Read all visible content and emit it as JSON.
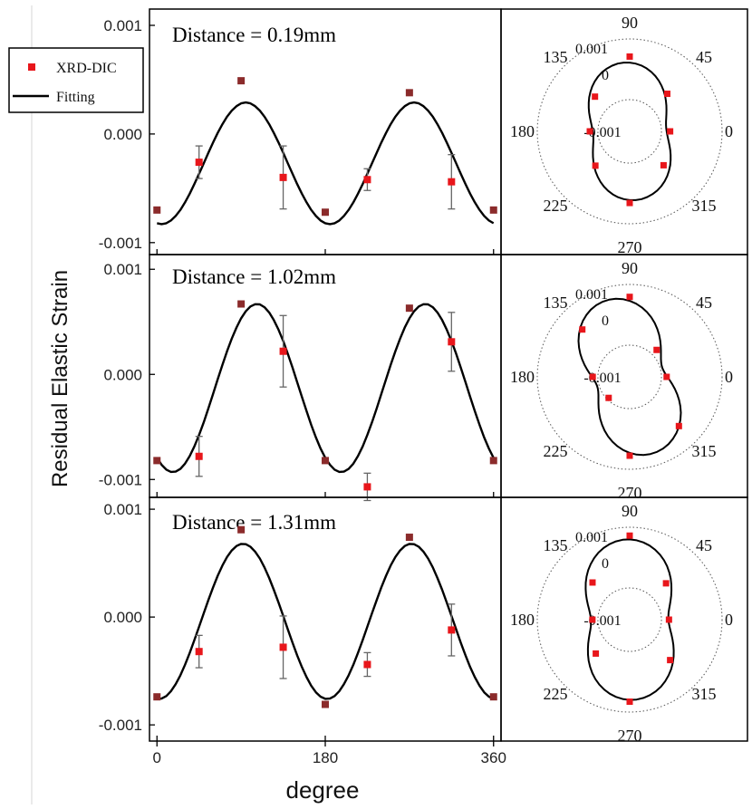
{
  "figure": {
    "ylabel": "Residual Elastic Strain",
    "xlabel": "degree",
    "legend": {
      "marker_label": "XRD-DIC",
      "line_label": "Fitting"
    },
    "colors": {
      "marker": "#e8161b",
      "marker_dark": "#8b2b2b",
      "fit": "#000000",
      "frame": "#000000"
    }
  },
  "chart_data": [
    {
      "type": "scatter",
      "annotation": "Distance = 0.19mm",
      "x_ticks": [
        "0",
        "180",
        "360"
      ],
      "y_ticks": [
        "0.001",
        "0.000",
        "-0.001"
      ],
      "xlim": [
        -8,
        368
      ],
      "ylim": [
        -0.00111,
        0.00115
      ],
      "series": [
        {
          "kind": "markers",
          "x": [
            0,
            45,
            90,
            135,
            180,
            225,
            270,
            315,
            360
          ],
          "y": [
            -0.0007,
            -0.00026,
            0.00049,
            -0.0004,
            -0.00072,
            -0.00042,
            0.00038,
            -0.00044,
            -0.0007
          ],
          "err": [
            0,
            0.00015,
            0,
            0.00029,
            0,
            0.0001,
            0,
            0.00025,
            0
          ]
        },
        {
          "kind": "fit",
          "mean": -0.00027,
          "amp": 0.00056,
          "peak_deg": 95
        }
      ]
    },
    {
      "type": "scatter",
      "annotation": "Distance = 1.02mm",
      "x_ticks": [
        "0",
        "180",
        "360"
      ],
      "y_ticks": [
        "0.001",
        "0.000",
        "-0.001"
      ],
      "xlim": [
        -8,
        368
      ],
      "ylim": [
        -0.00117,
        0.00114
      ],
      "series": [
        {
          "kind": "markers",
          "x": [
            0,
            45,
            90,
            135,
            180,
            225,
            270,
            315,
            360
          ],
          "y": [
            -0.00082,
            -0.00078,
            0.00067,
            0.00022,
            -0.00082,
            -0.00107,
            0.00063,
            0.00031,
            -0.00082
          ],
          "err": [
            0,
            0.00019,
            0,
            0.00034,
            0,
            0.00013,
            0,
            0.00028,
            0
          ]
        },
        {
          "kind": "fit",
          "mean": -0.00013,
          "amp": 0.0008,
          "peak_deg": 107
        }
      ]
    },
    {
      "type": "scatter",
      "annotation": "Distance = 1.31mm",
      "x_ticks": [
        "0",
        "180",
        "360"
      ],
      "y_ticks": [
        "0.001",
        "0.000",
        "-0.001"
      ],
      "xlim": [
        -8,
        368
      ],
      "ylim": [
        -0.00115,
        0.00111
      ],
      "series": [
        {
          "kind": "markers",
          "x": [
            0,
            45,
            90,
            135,
            180,
            225,
            270,
            315,
            360
          ],
          "y": [
            -0.00074,
            -0.00032,
            0.00081,
            -0.00028,
            -0.00081,
            -0.00044,
            0.00074,
            -0.00012,
            -0.00074
          ],
          "err": [
            0,
            0.00015,
            0,
            0.00029,
            0,
            0.00011,
            0,
            0.00024,
            0
          ]
        },
        {
          "kind": "fit",
          "mean": -4e-05,
          "amp": 0.00072,
          "peak_deg": 92
        }
      ]
    },
    {
      "type": "polar",
      "angle_ticks": [
        "90",
        "45",
        "0",
        "315",
        "270",
        "225",
        "180",
        "135"
      ],
      "radial_ticks": [
        "0.001",
        "0",
        "-0.001"
      ],
      "rlim": [
        -0.0021,
        0.0011
      ],
      "points": {
        "theta": [
          0,
          45,
          90,
          135,
          180,
          225,
          270,
          315
        ],
        "r": [
          -0.0007,
          -0.00026,
          0.00049,
          -0.0004,
          -0.00072,
          -0.00042,
          0.00038,
          -0.00044
        ]
      },
      "fit": {
        "mean": -0.00027,
        "amp": 0.00056,
        "peak_deg": 95
      }
    },
    {
      "type": "polar",
      "angle_ticks": [
        "90",
        "45",
        "0",
        "315",
        "270",
        "225",
        "180",
        "135"
      ],
      "radial_ticks": [
        "0.001",
        "0",
        "-0.001"
      ],
      "rlim": [
        -0.0021,
        0.0011
      ],
      "points": {
        "theta": [
          0,
          45,
          90,
          135,
          180,
          225,
          270,
          315
        ],
        "r": [
          -0.00082,
          -0.00078,
          0.00067,
          0.00022,
          -0.00082,
          -0.00107,
          0.00063,
          0.00031
        ]
      },
      "fit": {
        "mean": -0.00013,
        "amp": 0.0008,
        "peak_deg": 107
      }
    },
    {
      "type": "polar",
      "angle_ticks": [
        "90",
        "45",
        "0",
        "315",
        "270",
        "225",
        "180",
        "135"
      ],
      "radial_ticks": [
        "0.001",
        "0",
        "-0.001"
      ],
      "rlim": [
        -0.0021,
        0.0011
      ],
      "points": {
        "theta": [
          0,
          45,
          90,
          135,
          180,
          225,
          270,
          315
        ],
        "r": [
          -0.00074,
          -0.00032,
          0.00081,
          -0.00028,
          -0.00081,
          -0.00044,
          0.00074,
          -0.00012
        ]
      },
      "fit": {
        "mean": -4e-05,
        "amp": 0.00072,
        "peak_deg": 92
      }
    }
  ]
}
